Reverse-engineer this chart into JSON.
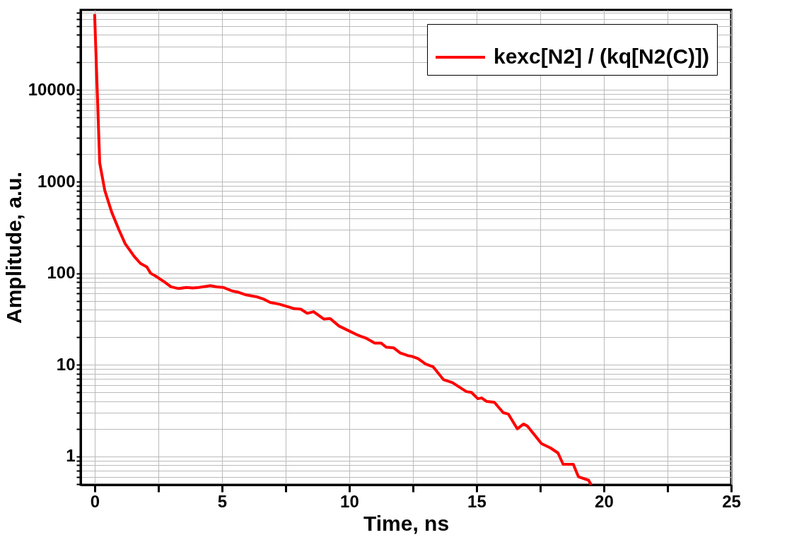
{
  "chart_data": {
    "type": "line",
    "xlabel": "Time, ns",
    "ylabel": "Amplitude, a.u.",
    "x": [
      0,
      0.2,
      0.4,
      0.67,
      0.95,
      1.2,
      1.55,
      1.8,
      2.05,
      2.2,
      2.4,
      2.75,
      3.0,
      3.3,
      3.6,
      3.85,
      4.1,
      4.55,
      4.8,
      5.05,
      5.4,
      5.65,
      5.95,
      6.4,
      6.65,
      6.9,
      7.25,
      7.6,
      7.85,
      8.1,
      8.35,
      8.6,
      9.0,
      9.25,
      9.6,
      10.0,
      10.35,
      10.65,
      11.0,
      11.25,
      11.45,
      11.75,
      12.0,
      12.3,
      12.45,
      12.7,
      13.0,
      13.3,
      13.7,
      14.05,
      14.6,
      14.8,
      15.05,
      15.2,
      15.4,
      15.7,
      16.05,
      16.25,
      16.6,
      16.85,
      17.0,
      17.55,
      17.9,
      18.2,
      18.4,
      18.8,
      19.0,
      19.4,
      19.5
    ],
    "series": [
      {
        "name": "kexc[N2] / (kq[N2(C)])",
        "color": "#ff0000",
        "values": [
          67600,
          1600,
          800,
          465,
          300,
          210,
          153,
          128,
          117,
          100,
          93,
          80,
          71,
          68,
          70,
          69,
          70,
          73,
          71,
          70,
          64,
          62,
          58,
          55,
          52,
          48,
          46,
          43,
          41,
          40.5,
          36.5,
          38,
          31.6,
          32,
          26.5,
          23.4,
          21,
          19.6,
          17.3,
          17.3,
          15.6,
          15.3,
          13.5,
          12.6,
          12.4,
          11.7,
          10.2,
          9.5,
          6.9,
          6.4,
          5.1,
          5.0,
          4.27,
          4.35,
          3.98,
          3.9,
          3.0,
          2.9,
          2.0,
          2.26,
          2.14,
          1.38,
          1.24,
          1.09,
          0.82,
          0.82,
          0.6,
          0.55,
          0.49
        ]
      }
    ],
    "xlim": [
      -0.55,
      25
    ],
    "xticks": [
      0,
      {
        "value": 2.5,
        "label": null
      },
      5,
      {
        "value": 7.5,
        "label": null
      },
      10,
      {
        "value": 12.5,
        "label": null
      },
      15,
      {
        "value": 17.5,
        "label": null
      },
      20,
      {
        "value": 22.5,
        "label": null
      },
      25
    ],
    "ylim": [
      0.49,
      75000
    ],
    "log": "y",
    "yticks": [
      {
        "value": 0.5,
        "label": null
      },
      {
        "value": 0.6,
        "label": null
      },
      {
        "value": 0.7,
        "label": null
      },
      {
        "value": 0.8,
        "label": null
      },
      {
        "value": 0.9,
        "label": null
      },
      1,
      {
        "value": 2,
        "label": null
      },
      {
        "value": 3,
        "label": null
      },
      {
        "value": 4,
        "label": null
      },
      {
        "value": 5,
        "label": null
      },
      {
        "value": 6,
        "label": null
      },
      {
        "value": 7,
        "label": null
      },
      {
        "value": 8,
        "label": null
      },
      {
        "value": 9,
        "label": null
      },
      10,
      {
        "value": 20,
        "label": null
      },
      {
        "value": 30,
        "label": null
      },
      {
        "value": 40,
        "label": null
      },
      {
        "value": 50,
        "label": null
      },
      {
        "value": 60,
        "label": null
      },
      {
        "value": 70,
        "label": null
      },
      {
        "value": 80,
        "label": null
      },
      {
        "value": 90,
        "label": null
      },
      100,
      {
        "value": 200,
        "label": null
      },
      {
        "value": 300,
        "label": null
      },
      {
        "value": 400,
        "label": null
      },
      {
        "value": 500,
        "label": null
      },
      {
        "value": 600,
        "label": null
      },
      {
        "value": 700,
        "label": null
      },
      {
        "value": 800,
        "label": null
      },
      {
        "value": 900,
        "label": null
      },
      1000,
      {
        "value": 2000,
        "label": null
      },
      {
        "value": 3000,
        "label": null
      },
      {
        "value": 4000,
        "label": null
      },
      {
        "value": 5000,
        "label": null
      },
      {
        "value": 6000,
        "label": null
      },
      {
        "value": 7000,
        "label": null
      },
      {
        "value": 8000,
        "label": null
      },
      {
        "value": 9000,
        "label": null
      },
      10000,
      {
        "value": 20000,
        "label": null
      },
      {
        "value": 30000,
        "label": null
      },
      {
        "value": 40000,
        "label": null
      },
      {
        "value": 50000,
        "label": null
      },
      {
        "value": 60000,
        "label": null
      },
      {
        "value": 70000,
        "label": null
      }
    ],
    "grid": true,
    "legend": "top right",
    "marker": "none",
    "line_style": "solid"
  }
}
